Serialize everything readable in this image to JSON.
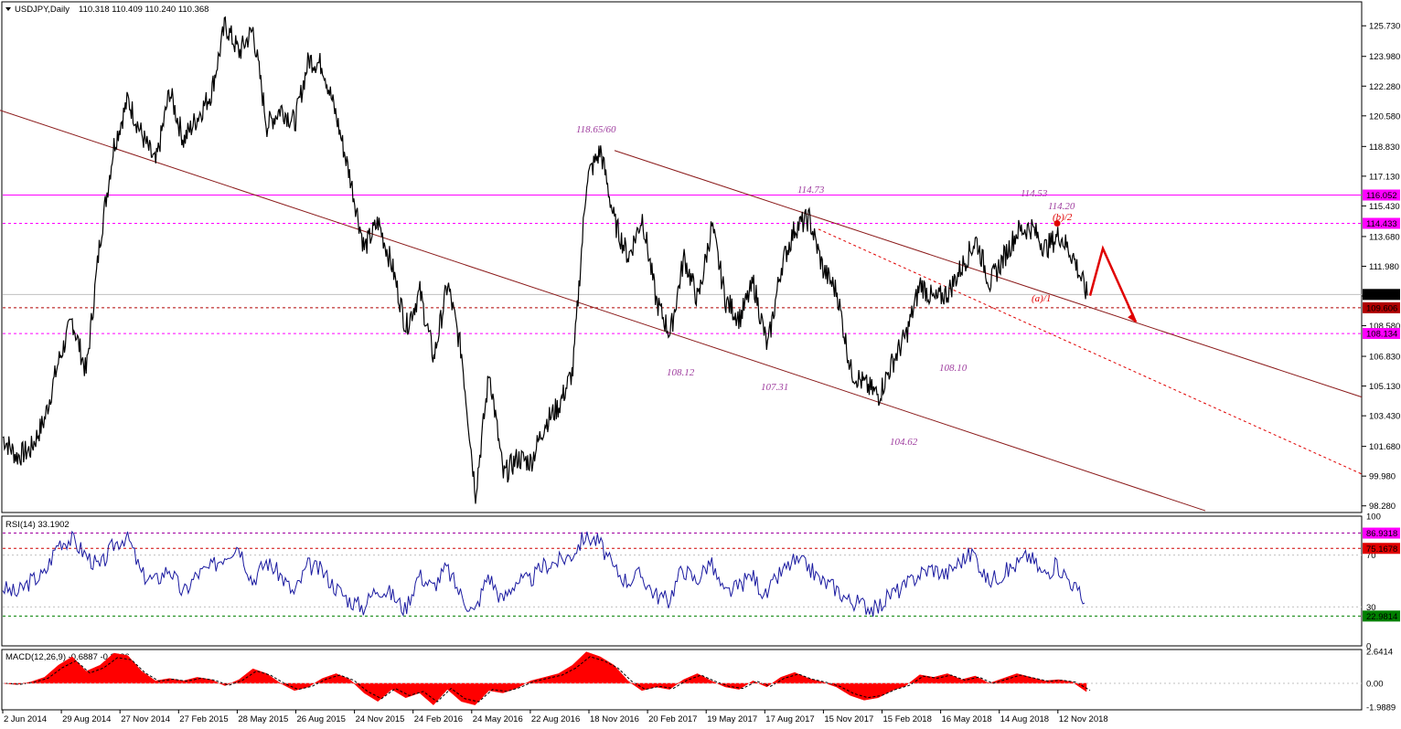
{
  "main_header": {
    "symbol": "USDJPY,Daily",
    "ohlc": "110.318 110.409 110.240 110.368"
  },
  "rsi_header": "RSI(14) 33.1902",
  "macd_header": "MACD(12,26,9) -0.6887 -0.3686",
  "colors": {
    "price": "#000000",
    "magenta": "#ff00ff",
    "channel": "#8b1a1a",
    "red": "#e00000",
    "rsi": "#1a1aa0",
    "macd": "#ff0000"
  },
  "chart_data": [
    {
      "type": "line",
      "title": "USDJPY,Daily",
      "x_tick_labels": [
        "2 Jun 2014",
        "29 Aug 2014",
        "27 Nov 2014",
        "27 Feb 2015",
        "28 May 2015",
        "26 Aug 2015",
        "24 Nov 2015",
        "24 Feb 2016",
        "24 May 2016",
        "22 Aug 2016",
        "18 Nov 2016",
        "20 Feb 2017",
        "19 May 2017",
        "17 Aug 2017",
        "15 Nov 2017",
        "15 Feb 2018",
        "16 May 2018",
        "14 Aug 2018",
        "12 Nov 2018"
      ],
      "y_tick_labels": [
        "125.730",
        "123.980",
        "122.280",
        "120.580",
        "118.830",
        "117.130",
        "115.430",
        "113.680",
        "111.980",
        "110.280",
        "108.580",
        "106.830",
        "105.130",
        "103.430",
        "101.680",
        "99.980",
        "98.280"
      ],
      "ylim": [
        97.9,
        127.1
      ],
      "series": [
        {
          "values": [
            102.2,
            101.1,
            101.5,
            103.2,
            106.5,
            108.9,
            105.9,
            113.5,
            118.9,
            121.5,
            119.5,
            117.8,
            122.0,
            119.2,
            120.5,
            121.9,
            125.8,
            124.2,
            125.5,
            120.0,
            121.0,
            120.2,
            123.8,
            123.5,
            120.5,
            117.0,
            113.0,
            114.5,
            112.0,
            108.5,
            110.5,
            106.7,
            111.0,
            107.0,
            99.0,
            106.0,
            100.0,
            101.0,
            100.8,
            103.0,
            104.0,
            106.0,
            117.0,
            118.6,
            114.5,
            112.5,
            114.8,
            110.0,
            108.1,
            112.5,
            110.0,
            114.3,
            110.0,
            109.0,
            111.0,
            107.3,
            112.0,
            114.2,
            114.7,
            111.8,
            110.5,
            106.0,
            105.2,
            104.6,
            106.5,
            108.1,
            111.0,
            110.0,
            110.5,
            112.0,
            113.5,
            111.0,
            112.5,
            114.0,
            114.2,
            113.0,
            113.8,
            112.5,
            110.3
          ]
        }
      ],
      "horizontal_levels": [
        "116.052",
        "114.433",
        "110.368",
        "109.606",
        "108.134"
      ],
      "annotations": [
        "118.65/60",
        "114.73",
        "114.53",
        "114.20",
        "(b)/2",
        "(a)/1",
        "108.12",
        "107.31",
        "104.62",
        "108.10"
      ]
    },
    {
      "type": "line",
      "title": "RSI(14) 33.1902",
      "y_tick_labels": [
        "100",
        "70",
        "30",
        "0"
      ],
      "ylim": [
        0,
        100
      ],
      "levels": [
        "86.9318",
        "75.1678",
        "22.9814"
      ],
      "series": [
        {
          "values": [
            45,
            40,
            50,
            55,
            80,
            82,
            70,
            60,
            78,
            85,
            55,
            50,
            60,
            40,
            55,
            60,
            70,
            78,
            50,
            65,
            55,
            40,
            62,
            58,
            45,
            35,
            30,
            45,
            40,
            28,
            55,
            45,
            60,
            40,
            25,
            55,
            35,
            50,
            50,
            62,
            65,
            70,
            85,
            80,
            60,
            50,
            55,
            40,
            35,
            60,
            50,
            65,
            40,
            45,
            55,
            38,
            55,
            65,
            62,
            50,
            45,
            35,
            32,
            28,
            40,
            45,
            55,
            60,
            55,
            65,
            72,
            50,
            55,
            62,
            70,
            55,
            62,
            50,
            33
          ]
        }
      ]
    },
    {
      "type": "area",
      "title": "MACD(12,26,9) -0.6887 -0.3686",
      "y_tick_labels": [
        "2.6414",
        "0.00",
        "-1.9889"
      ],
      "ylim": [
        -2.2,
        2.8
      ],
      "series": [
        {
          "values": [
            0.0,
            -0.1,
            0.1,
            0.5,
            1.5,
            2.2,
            1.0,
            1.5,
            2.5,
            2.3,
            1.0,
            0.2,
            0.4,
            0.2,
            0.5,
            0.3,
            -0.2,
            0.3,
            1.2,
            0.8,
            0.0,
            -0.6,
            -0.3,
            0.4,
            0.8,
            0.3,
            -0.8,
            -1.5,
            -0.5,
            -1.2,
            -0.8,
            -1.8,
            -0.5,
            -1.5,
            -1.8,
            -0.6,
            -0.8,
            -0.4,
            0.2,
            0.5,
            0.8,
            1.5,
            2.6,
            2.2,
            1.5,
            0.2,
            -0.6,
            -0.3,
            -0.5,
            0.3,
            0.8,
            0.2,
            -0.3,
            -0.5,
            0.2,
            -0.3,
            0.5,
            0.9,
            0.4,
            0.1,
            -0.3,
            -1.0,
            -1.4,
            -1.2,
            -0.6,
            -0.2,
            0.7,
            0.5,
            0.8,
            0.3,
            0.6,
            0.0,
            0.4,
            0.8,
            0.5,
            0.2,
            0.3,
            0.1,
            -0.69
          ]
        }
      ]
    }
  ]
}
